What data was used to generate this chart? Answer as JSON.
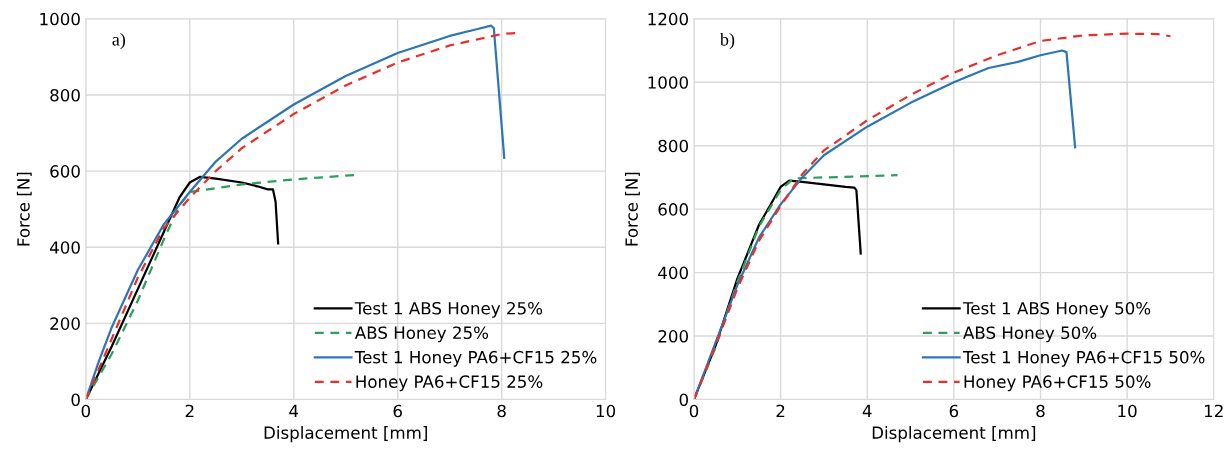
{
  "chart_data": [
    {
      "type": "line",
      "annotations": [
        "a)"
      ],
      "xlabel": "Displacement [mm]",
      "ylabel": "Force [N]",
      "xlim": [
        0,
        10
      ],
      "xticks": [
        0,
        2,
        4,
        6,
        8,
        10
      ],
      "ylim": [
        0,
        1000
      ],
      "yticks": [
        0,
        200,
        400,
        600,
        800,
        1000
      ],
      "grid": true,
      "legend": "bottom right",
      "series": [
        {
          "name": "Test 1 ABS Honey 25%",
          "color": "#000000",
          "line_style": "solid",
          "x": [
            0,
            0.5,
            1,
            1.5,
            1.8,
            2,
            2.2,
            2.5,
            3,
            3.3,
            3.5,
            3.6,
            3.65,
            3.7
          ],
          "values": [
            0,
            140,
            290,
            440,
            530,
            570,
            585,
            580,
            570,
            560,
            552,
            552,
            520,
            410
          ]
        },
        {
          "name": "ABS Honey 25%",
          "color": "#2ca05a",
          "line_style": "dashed",
          "x": [
            0,
            0.5,
            1,
            1.5,
            1.8,
            2,
            2.5,
            3,
            4,
            5.2
          ],
          "values": [
            0,
            120,
            260,
            420,
            510,
            545,
            555,
            565,
            578,
            590
          ]
        },
        {
          "name": "Test 1 Honey PA6+CF15 25%",
          "color": "#2e75b6",
          "line_style": "solid",
          "x": [
            0,
            0.25,
            0.5,
            1,
            1.5,
            2,
            2.5,
            3,
            4,
            5,
            6,
            7,
            7.5,
            7.8,
            7.85,
            8.05
          ],
          "values": [
            0,
            100,
            190,
            340,
            460,
            545,
            625,
            685,
            775,
            850,
            910,
            955,
            972,
            982,
            975,
            635
          ]
        },
        {
          "name": "Honey PA6+CF15 25%",
          "color": "#e8302a",
          "line_style": "dashed",
          "x": [
            0,
            0.5,
            1,
            1.5,
            2,
            2.5,
            3,
            4,
            5,
            6,
            7,
            8,
            8.3
          ],
          "values": [
            0,
            160,
            320,
            450,
            530,
            600,
            660,
            750,
            825,
            885,
            930,
            960,
            963
          ]
        }
      ]
    },
    {
      "type": "line",
      "annotations": [
        "b)"
      ],
      "xlabel": "Displacement [mm]",
      "ylabel": "Force [N]",
      "xlim": [
        0,
        12
      ],
      "xticks": [
        0,
        2,
        4,
        6,
        8,
        10,
        12
      ],
      "ylim": [
        0,
        1200
      ],
      "yticks": [
        0,
        200,
        400,
        600,
        800,
        1000,
        1200
      ],
      "grid": true,
      "legend": "bottom right",
      "series": [
        {
          "name": "Test 1 ABS Honey 50%",
          "color": "#000000",
          "line_style": "solid",
          "x": [
            0,
            0.5,
            1,
            1.5,
            2,
            2.2,
            2.5,
            3,
            3.5,
            3.7,
            3.75,
            3.85
          ],
          "values": [
            0,
            170,
            380,
            550,
            670,
            690,
            686,
            678,
            670,
            668,
            660,
            460
          ]
        },
        {
          "name": "ABS Honey 50%",
          "color": "#2ca05a",
          "line_style": "dashed",
          "x": [
            0,
            0.5,
            1,
            1.5,
            2,
            2.3,
            3,
            4,
            4.7
          ],
          "values": [
            0,
            165,
            370,
            545,
            660,
            697,
            700,
            704,
            707
          ]
        },
        {
          "name": "Test 1 Honey PA6+CF15 50%",
          "color": "#2e75b6",
          "line_style": "solid",
          "x": [
            0,
            0.5,
            1,
            1.5,
            2,
            2.5,
            3,
            4,
            5,
            6,
            6.8,
            7.5,
            8,
            8.5,
            8.6,
            8.8
          ],
          "values": [
            0,
            180,
            360,
            510,
            615,
            700,
            770,
            860,
            935,
            1000,
            1045,
            1065,
            1085,
            1100,
            1095,
            795
          ]
        },
        {
          "name": "Honey PA6+CF15 50%",
          "color": "#e8302a",
          "line_style": "dashed",
          "x": [
            0,
            0.5,
            1,
            1.5,
            2,
            2.5,
            3,
            4,
            5,
            6,
            7,
            8,
            9,
            10,
            10.7,
            11
          ],
          "values": [
            0,
            170,
            350,
            500,
            610,
            710,
            785,
            880,
            960,
            1030,
            1085,
            1130,
            1148,
            1153,
            1152,
            1145
          ]
        }
      ]
    }
  ]
}
